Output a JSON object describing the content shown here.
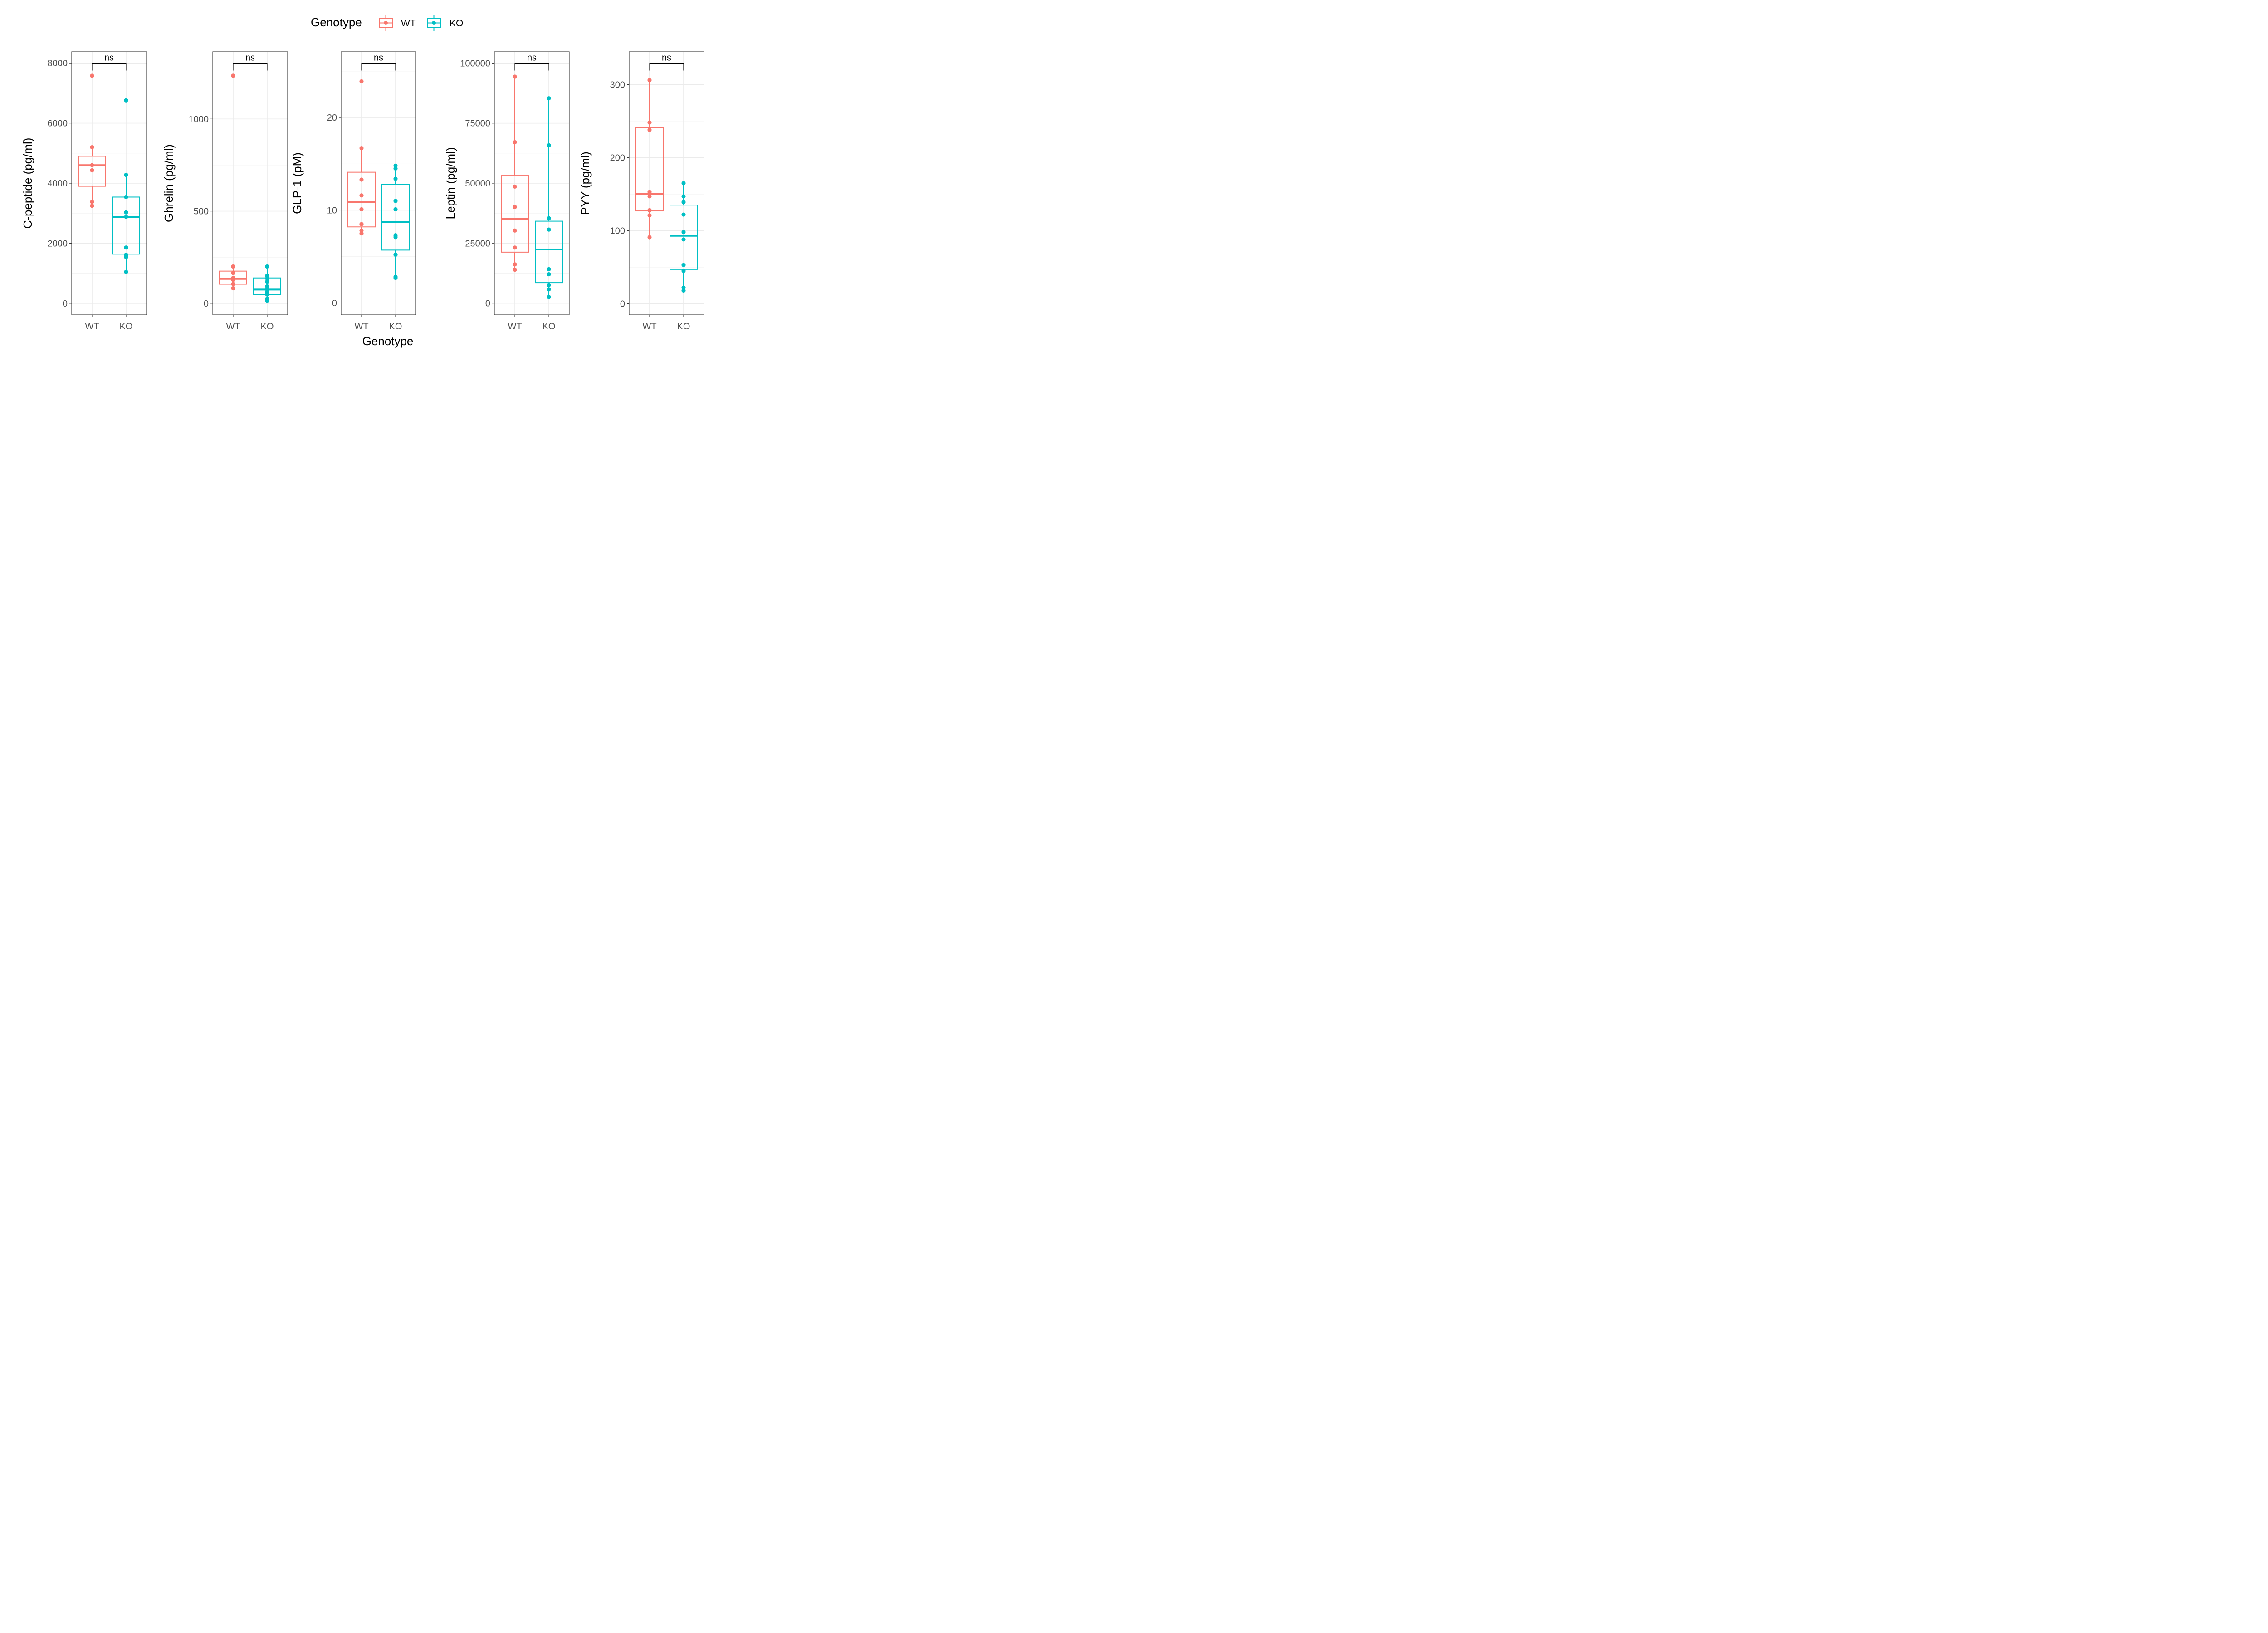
{
  "chart_data": {
    "type": "box",
    "legend": {
      "title": "Genotype",
      "position": "top",
      "entries": [
        {
          "label": "WT",
          "color": "#F8766D"
        },
        {
          "label": "KO",
          "color": "#00BFC4"
        }
      ]
    },
    "xlabel": "Genotype",
    "categories": [
      "WT",
      "KO"
    ],
    "grid": true,
    "panels": [
      {
        "ylabel": "C-peptide (pg/ml)",
        "ylim": [
          -380,
          8380
        ],
        "yticks": [
          0,
          2000,
          4000,
          6000,
          8000
        ],
        "significance": "ns",
        "series": [
          {
            "name": "WT",
            "box": {
              "min": 3250,
              "q1": 3900,
              "median": 4600,
              "q3": 4900,
              "max": 5200
            },
            "points": [
              7580,
              5200,
              4600,
              4430,
              3380,
              3250
            ]
          },
          {
            "name": "KO",
            "box": {
              "min": 1050,
              "q1": 1640,
              "median": 2880,
              "q3": 3540,
              "max": 4280
            },
            "points": [
              6760,
              4280,
              3540,
              3030,
              2880,
              1860,
              1620,
              1540,
              1050
            ]
          }
        ]
      },
      {
        "ylabel": "Ghrelin (pg/ml)",
        "ylim": [
          -62,
          1365
        ],
        "yticks": [
          0,
          500,
          1000
        ],
        "significance": "ns",
        "series": [
          {
            "name": "WT",
            "box": {
              "min": 82,
              "q1": 104,
              "median": 133,
              "q3": 175,
              "max": 200
            },
            "points": [
              1235,
              200,
              165,
              138,
              128,
              105,
              82
            ]
          },
          {
            "name": "KO",
            "box": {
              "min": 15,
              "q1": 48,
              "median": 75,
              "q3": 138,
              "max": 200
            },
            "points": [
              200,
              150,
              135,
              118,
              92,
              75,
              60,
              48,
              25,
              15
            ]
          }
        ]
      },
      {
        "ylabel": "GLP-1 (pM)",
        "ylim": [
          -1.28,
          27.1
        ],
        "yticks": [
          0,
          10,
          20
        ],
        "significance": "ns",
        "series": [
          {
            "name": "WT",
            "box": {
              "min": 7.5,
              "q1": 8.2,
              "median": 10.9,
              "q3": 14.1,
              "max": 16.7
            },
            "points": [
              23.9,
              16.7,
              13.3,
              11.6,
              10.1,
              8.5,
              7.8,
              7.5
            ]
          },
          {
            "name": "KO",
            "box": {
              "min": 2.7,
              "q1": 5.7,
              "median": 8.7,
              "q3": 12.8,
              "max": 14.8
            },
            "points": [
              14.8,
              14.5,
              13.4,
              11.0,
              10.1,
              7.3,
              7.1,
              5.2,
              2.8,
              2.7
            ]
          }
        ]
      },
      {
        "ylabel": "Leptin (pg/ml)",
        "ylim": [
          -4800,
          104800
        ],
        "yticks": [
          0,
          25000,
          50000,
          75000,
          100000
        ],
        "significance": "ns",
        "series": [
          {
            "name": "WT",
            "box": {
              "min": 14000,
              "q1": 21300,
              "median": 35200,
              "q3": 53200,
              "max": 94400
            },
            "points": [
              94400,
              67100,
              48600,
              40100,
              30300,
              23200,
              16200,
              14000
            ]
          },
          {
            "name": "KO",
            "box": {
              "min": 2600,
              "q1": 8600,
              "median": 22400,
              "q3": 34200,
              "max": 85400
            },
            "points": [
              85400,
              65800,
              35400,
              30700,
              14200,
              12100,
              7600,
              5800,
              2600
            ]
          }
        ]
      },
      {
        "ylabel": "PYY (pg/ml)",
        "ylim": [
          -15.2,
          345
        ],
        "yticks": [
          0,
          100,
          200,
          300
        ],
        "significance": "ns",
        "series": [
          {
            "name": "WT",
            "box": {
              "min": 91,
              "q1": 127,
              "median": 150,
              "q3": 241,
              "max": 306
            },
            "points": [
              306,
              248,
              238,
              153,
              150,
              147,
              128,
              121,
              91
            ]
          },
          {
            "name": "KO",
            "box": {
              "min": 17,
              "q1": 47,
              "median": 93,
              "q3": 135,
              "max": 165
            },
            "points": [
              165,
              147,
              139,
              122,
              98,
              88,
              53,
              45,
              22,
              18
            ]
          }
        ]
      }
    ]
  }
}
